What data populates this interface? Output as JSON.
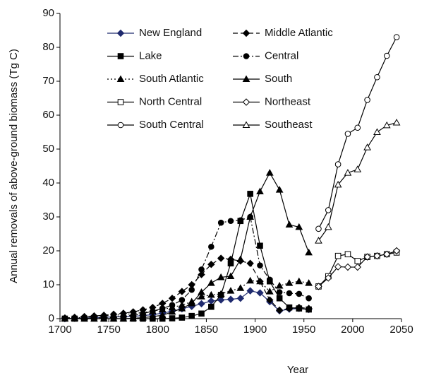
{
  "chart_data": {
    "type": "line",
    "x_label": "Year",
    "y_label": "Annual removals of above-ground biomass (Tg C)",
    "x": [
      1705,
      1715,
      1725,
      1735,
      1745,
      1755,
      1765,
      1775,
      1785,
      1795,
      1805,
      1815,
      1825,
      1835,
      1845,
      1855,
      1865,
      1875,
      1885,
      1895,
      1905,
      1915,
      1925,
      1935,
      1945,
      1955,
      1965,
      1975,
      1985,
      1995,
      2005,
      2015,
      2025,
      2035,
      2045
    ],
    "xlim": [
      1700,
      2050
    ],
    "xticks": [
      1700,
      1750,
      1800,
      1850,
      1900,
      1950,
      2000,
      2050
    ],
    "ylim": [
      0,
      90
    ],
    "yticks": [
      0,
      10,
      20,
      30,
      40,
      50,
      60,
      70,
      80,
      90
    ],
    "grid": false,
    "series": [
      {
        "name": "New England",
        "color": "#1f2a6e",
        "line_style": "solid",
        "marker": "diamond",
        "marker_fill": true,
        "values": [
          0,
          0.1,
          0.2,
          0.3,
          0.4,
          0.5,
          0.6,
          0.7,
          0.9,
          1.2,
          1.6,
          2.2,
          2.9,
          3.6,
          4.4,
          5.2,
          5.5,
          5.7,
          6,
          8.2,
          7.6,
          5,
          2.3,
          2.8,
          3,
          2.7,
          null,
          null,
          null,
          null,
          null,
          null,
          null,
          null,
          null
        ]
      },
      {
        "name": "Middle Atlantic",
        "color": "#000000",
        "line_style": "dashed",
        "marker": "diamond",
        "marker_fill": true,
        "values": [
          0.2,
          0.4,
          0.6,
          0.8,
          1,
          1.3,
          1.6,
          2,
          2.6,
          3.3,
          4.5,
          6,
          8,
          10,
          13,
          16,
          17.8,
          17.5,
          17,
          16.3,
          11,
          5.5,
          2.5,
          3,
          3.3,
          3,
          null,
          null,
          null,
          null,
          null,
          null,
          null,
          null,
          null
        ]
      },
      {
        "name": "Lake",
        "color": "#000000",
        "line_style": "solid",
        "marker": "square",
        "marker_fill": true,
        "values": [
          0,
          0,
          0,
          0,
          0,
          0,
          0,
          0,
          0,
          0,
          0,
          0.1,
          0.3,
          0.8,
          1.5,
          3.5,
          7,
          16.3,
          28.8,
          36.8,
          21.5,
          11,
          6,
          3.3,
          3,
          2.7,
          null,
          null,
          null,
          null,
          null,
          null,
          null,
          null,
          null
        ]
      },
      {
        "name": "Central",
        "color": "#000000",
        "line_style": "dashdot",
        "marker": "circle",
        "marker_fill": true,
        "values": [
          0,
          0,
          0.1,
          0.2,
          0.3,
          0.5,
          0.7,
          1,
          1.5,
          2.2,
          3,
          4,
          5.5,
          8.5,
          14.5,
          21.2,
          28.3,
          28.8,
          29,
          30,
          15.7,
          11.5,
          7.8,
          7.5,
          7.3,
          6,
          null,
          null,
          null,
          null,
          null,
          null,
          null,
          null,
          null
        ]
      },
      {
        "name": "South Atlantic",
        "color": "#000000",
        "line_style": "dotted",
        "marker": "triangle",
        "marker_fill": true,
        "values": [
          0,
          0.2,
          0.4,
          0.6,
          0.8,
          1,
          1.2,
          1.5,
          1.8,
          2.2,
          2.7,
          3.3,
          4,
          5,
          6.5,
          7,
          7.3,
          8.2,
          9,
          11.2,
          11,
          8,
          9.7,
          10.5,
          11,
          10.5,
          null,
          null,
          null,
          null,
          null,
          null,
          null,
          null,
          null
        ]
      },
      {
        "name": "South",
        "color": "#000000",
        "line_style": "solid",
        "marker": "triangle",
        "marker_fill": true,
        "values": [
          0,
          0,
          0,
          0,
          0,
          0,
          0,
          0.1,
          0.3,
          0.6,
          1,
          2,
          3,
          4.5,
          7.8,
          10.5,
          12.2,
          12.5,
          17.5,
          30,
          37.5,
          43,
          38,
          27.7,
          27,
          19.5,
          null,
          null,
          null,
          null,
          null,
          null,
          null,
          null,
          null
        ]
      },
      {
        "name": "North Central",
        "color": "#000000",
        "line_style": "solid",
        "marker": "square",
        "marker_fill": false,
        "values": [
          null,
          null,
          null,
          null,
          null,
          null,
          null,
          null,
          null,
          null,
          null,
          null,
          null,
          null,
          null,
          null,
          null,
          null,
          null,
          null,
          null,
          null,
          null,
          null,
          null,
          null,
          9.5,
          12.5,
          18.5,
          19,
          17,
          18.2,
          18.5,
          19,
          19.5
        ]
      },
      {
        "name": "Northeast",
        "color": "#000000",
        "line_style": "solid",
        "marker": "diamond",
        "marker_fill": false,
        "values": [
          null,
          null,
          null,
          null,
          null,
          null,
          null,
          null,
          null,
          null,
          null,
          null,
          null,
          null,
          null,
          null,
          null,
          null,
          null,
          null,
          null,
          null,
          null,
          null,
          null,
          null,
          9.5,
          12,
          15.3,
          15.2,
          15.2,
          18.2,
          18.5,
          19,
          20
        ]
      },
      {
        "name": "South Central",
        "color": "#000000",
        "line_style": "solid",
        "marker": "circle",
        "marker_fill": false,
        "values": [
          null,
          null,
          null,
          null,
          null,
          null,
          null,
          null,
          null,
          null,
          null,
          null,
          null,
          null,
          null,
          null,
          null,
          null,
          null,
          null,
          null,
          null,
          null,
          null,
          null,
          null,
          26.5,
          32,
          45.5,
          54.5,
          56.3,
          64.5,
          71.2,
          77.5,
          83
        ]
      },
      {
        "name": "Southeast",
        "color": "#000000",
        "line_style": "solid",
        "marker": "triangle",
        "marker_fill": false,
        "values": [
          null,
          null,
          null,
          null,
          null,
          null,
          null,
          null,
          null,
          null,
          null,
          null,
          null,
          null,
          null,
          null,
          null,
          null,
          null,
          null,
          null,
          null,
          null,
          null,
          null,
          null,
          23,
          27,
          39.5,
          43,
          44,
          50.5,
          55,
          57,
          57.8
        ]
      }
    ]
  }
}
